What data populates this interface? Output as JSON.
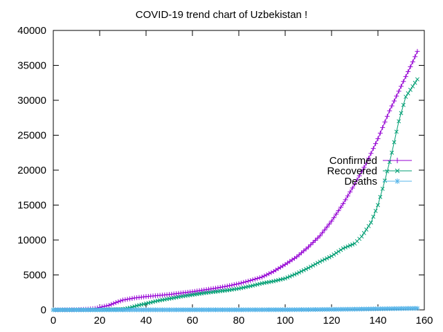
{
  "chart_data": {
    "type": "line",
    "title": "COVID-19 trend chart of Uzbekistan !",
    "xlabel": "",
    "ylabel": "",
    "xlim": [
      0,
      160
    ],
    "ylim": [
      0,
      40000
    ],
    "x_ticks": [
      0,
      20,
      40,
      60,
      80,
      100,
      120,
      140,
      160
    ],
    "y_ticks": [
      0,
      5000,
      10000,
      15000,
      20000,
      25000,
      30000,
      35000,
      40000
    ],
    "grid": false,
    "legend_position": "right",
    "series": [
      {
        "name": "Confirmed",
        "color": "#9400d3",
        "marker": "plus",
        "points": [
          [
            0,
            0
          ],
          [
            10,
            30
          ],
          [
            15,
            100
          ],
          [
            18,
            200
          ],
          [
            20,
            350
          ],
          [
            24,
            650
          ],
          [
            27,
            1050
          ],
          [
            30,
            1400
          ],
          [
            35,
            1700
          ],
          [
            40,
            1900
          ],
          [
            45,
            2050
          ],
          [
            50,
            2200
          ],
          [
            55,
            2400
          ],
          [
            60,
            2600
          ],
          [
            65,
            2850
          ],
          [
            70,
            3100
          ],
          [
            75,
            3400
          ],
          [
            80,
            3750
          ],
          [
            85,
            4200
          ],
          [
            90,
            4700
          ],
          [
            95,
            5500
          ],
          [
            100,
            6500
          ],
          [
            105,
            7600
          ],
          [
            110,
            9000
          ],
          [
            115,
            10600
          ],
          [
            120,
            12700
          ],
          [
            125,
            15200
          ],
          [
            130,
            18000
          ],
          [
            135,
            21000
          ],
          [
            140,
            24500
          ],
          [
            145,
            28500
          ],
          [
            150,
            32000
          ],
          [
            155,
            35500
          ],
          [
            157,
            37000
          ]
        ]
      },
      {
        "name": "Recovered",
        "color": "#009e73",
        "marker": "cross",
        "points": [
          [
            0,
            0
          ],
          [
            20,
            10
          ],
          [
            30,
            100
          ],
          [
            33,
            300
          ],
          [
            36,
            600
          ],
          [
            40,
            900
          ],
          [
            45,
            1300
          ],
          [
            50,
            1600
          ],
          [
            55,
            1900
          ],
          [
            60,
            2150
          ],
          [
            65,
            2400
          ],
          [
            70,
            2600
          ],
          [
            75,
            2800
          ],
          [
            80,
            3050
          ],
          [
            85,
            3400
          ],
          [
            90,
            3800
          ],
          [
            95,
            4100
          ],
          [
            100,
            4500
          ],
          [
            105,
            5200
          ],
          [
            110,
            6000
          ],
          [
            115,
            6900
          ],
          [
            120,
            7700
          ],
          [
            125,
            8800
          ],
          [
            130,
            9500
          ],
          [
            133,
            10500
          ],
          [
            137,
            12500
          ],
          [
            140,
            15000
          ],
          [
            143,
            18500
          ],
          [
            146,
            22500
          ],
          [
            149,
            27000
          ],
          [
            152,
            30500
          ],
          [
            155,
            32000
          ],
          [
            157,
            33000
          ]
        ]
      },
      {
        "name": "Deaths",
        "color": "#56b4e9",
        "marker": "star",
        "points": [
          [
            0,
            0
          ],
          [
            40,
            5
          ],
          [
            60,
            10
          ],
          [
            80,
            15
          ],
          [
            100,
            25
          ],
          [
            110,
            40
          ],
          [
            120,
            70
          ],
          [
            130,
            100
          ],
          [
            140,
            150
          ],
          [
            150,
            190
          ],
          [
            157,
            220
          ]
        ]
      }
    ]
  }
}
